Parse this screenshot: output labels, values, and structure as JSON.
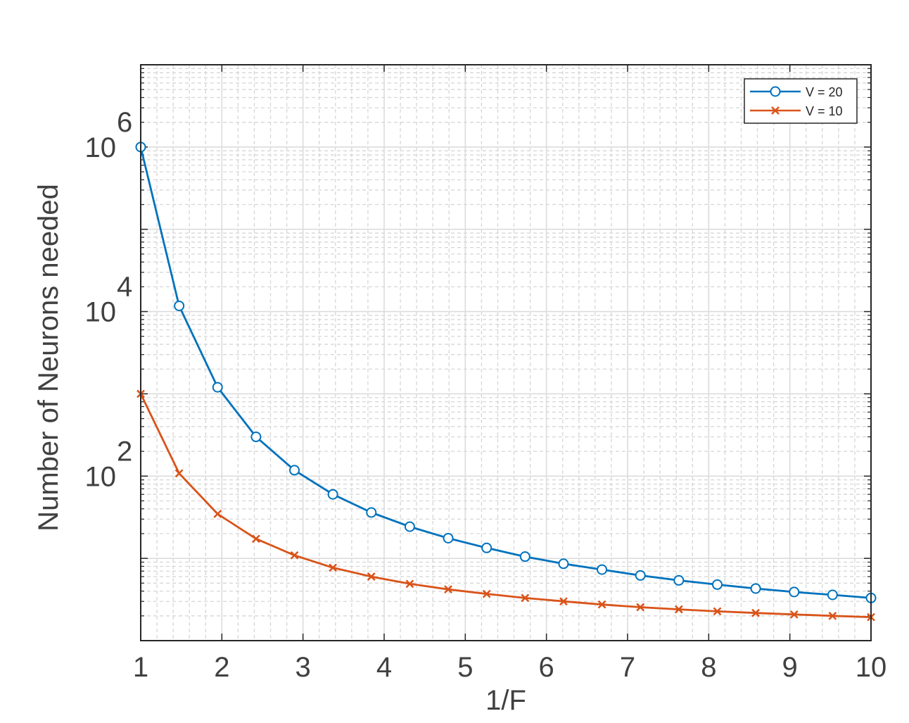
{
  "chart_data": {
    "type": "line",
    "xlabel": "1/F",
    "ylabel": "Number of Neurons needed",
    "xlim": [
      1,
      10
    ],
    "ylim": [
      1,
      10000000
    ],
    "yscale": "log",
    "grid": true,
    "minor_grid": true,
    "legend_position": "top-right",
    "x_ticks": [
      1,
      2,
      3,
      4,
      5,
      6,
      7,
      8,
      9,
      10
    ],
    "x_tick_labels": [
      "1",
      "2",
      "3",
      "4",
      "5",
      "6",
      "7",
      "8",
      "9",
      "10"
    ],
    "y_tick_labels": [
      {
        "value": 100,
        "base": "10",
        "exp": "2"
      },
      {
        "value": 10000,
        "base": "10",
        "exp": "4"
      },
      {
        "value": 1000000,
        "base": "10",
        "exp": "6"
      }
    ],
    "x": [
      1,
      1.4737,
      1.9474,
      2.4211,
      2.8947,
      3.3684,
      3.8421,
      4.3158,
      4.7895,
      5.2632,
      5.7368,
      6.2105,
      6.6842,
      7.1579,
      7.6316,
      8.1053,
      8.5789,
      9.0526,
      9.5263,
      10
    ],
    "series": [
      {
        "name": "V = 20",
        "color": "#0072BD",
        "marker": "circle",
        "values": [
          1000000,
          11730,
          1202,
          300,
          118,
          60,
          36.1,
          24.3,
          17.6,
          13.4,
          10.5,
          8.6,
          7.3,
          6.2,
          5.4,
          4.8,
          4.3,
          3.9,
          3.6,
          3.3
        ]
      },
      {
        "name": "V = 10",
        "color": "#D95319",
        "marker": "x",
        "values": [
          1000,
          108,
          34.7,
          17.3,
          10.9,
          7.7,
          6.0,
          4.9,
          4.2,
          3.7,
          3.3,
          3.0,
          2.75,
          2.55,
          2.4,
          2.27,
          2.17,
          2.08,
          2.0,
          1.93
        ]
      }
    ]
  }
}
